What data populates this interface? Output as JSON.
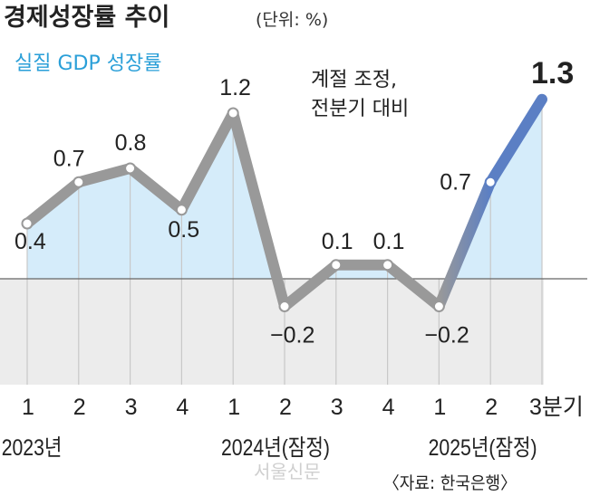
{
  "chart_data": {
    "type": "line",
    "title": "경제성장률 추이",
    "unit": "(단위: %)",
    "series": [
      {
        "name": "실질 GDP 성장률",
        "values": [
          0.4,
          0.7,
          0.8,
          0.5,
          1.2,
          -0.2,
          0.1,
          0.1,
          -0.2,
          0.7,
          1.3
        ]
      }
    ],
    "value_labels": [
      "0.4",
      "0.7",
      "0.8",
      "0.5",
      "1.2",
      "−0.2",
      "0.1",
      "0.1",
      "−0.2",
      "0.7",
      "1.3"
    ],
    "categories": [
      "1",
      "2",
      "3",
      "4",
      "1",
      "2",
      "3",
      "4",
      "1",
      "2",
      "3분기"
    ],
    "year_labels": [
      "2023년",
      "2024년(잠정)",
      "2025년(잠정)"
    ],
    "annotation": [
      "계절 조정,",
      "전분기 대비"
    ],
    "source": "〈자료: 한국은행〉",
    "watermark": "서울신문",
    "ylim": [
      -0.77,
      1.3
    ],
    "colors": {
      "line": "#999999",
      "highlight": "#5b7fc4",
      "fill_pos": "#d5ecfa",
      "fill_neg": "#ececec",
      "legend": "#2a9fd8"
    }
  }
}
